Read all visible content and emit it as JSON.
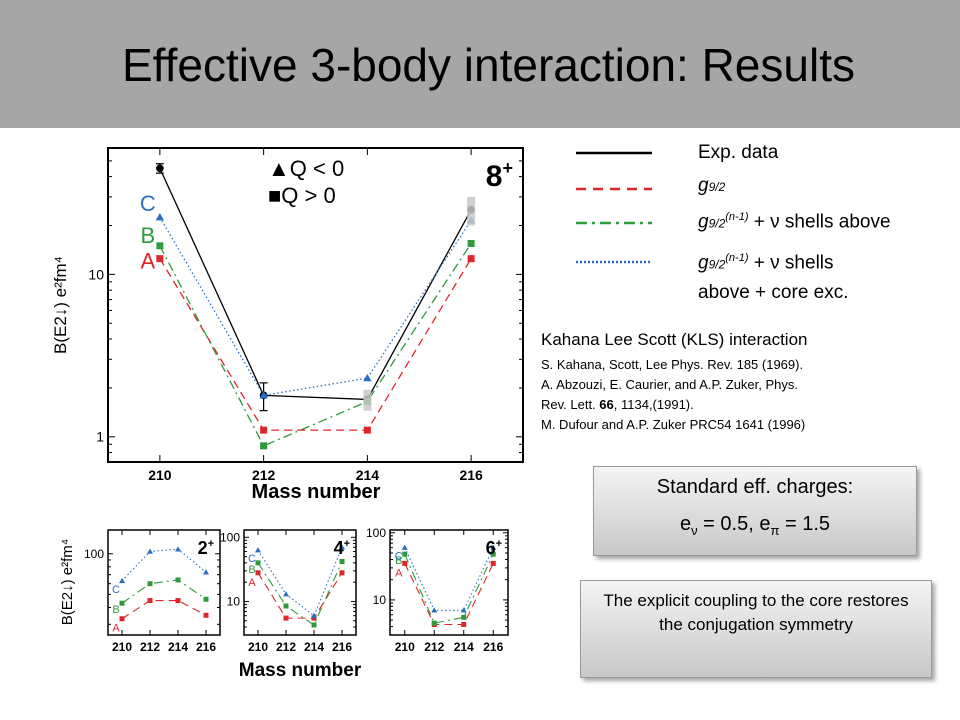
{
  "slide": {
    "title": "Effective 3-body interaction: Results"
  },
  "legend": {
    "items": [
      {
        "label": "Exp. data",
        "style": "solid",
        "color": "#000000"
      },
      {
        "label_main": "g",
        "label_sub": "9/2",
        "style": "dashed",
        "color": "#e0262a"
      },
      {
        "label_main": "g",
        "label_sub": "9/2",
        "label_sup": "(n-1)",
        "label_rest": " + ν shells above",
        "style": "dashdot",
        "color": "#2e9a3c"
      },
      {
        "label_main": "g",
        "label_sub": "9/2",
        "label_sup": "(n-1)",
        "label_rest": " + ν shells",
        "label_line2": "above + core exc.",
        "style": "dotted",
        "color": "#2a6fc4"
      }
    ]
  },
  "references": {
    "heading": "Kahana Lee Scott (KLS) interaction",
    "lines": [
      "S. Kahana, Scott, Lee Phys. Rev. 185 (1969).",
      "A. Abzouzi, E. Caurier, and A.P. Zuker, Phys.",
      "M. Dufour and A.P. Zuker PRC54 1641 (1996)"
    ],
    "line3_pre": "Rev. Lett. ",
    "line3_bold": "66",
    "line3_post": ", 1134,(1991)."
  },
  "charges_box": {
    "line1": "Standard eff. charges:",
    "e_nu_label": "e",
    "e_nu_sub": "ν",
    "e_nu_value": " = 0.5, ",
    "e_pi_label": "e",
    "e_pi_sub": "π",
    "e_pi_value": " = 1.5"
  },
  "note_box": {
    "text": "The explicit coupling to the core restores the conjugation symmetry"
  },
  "chart_data": [
    {
      "type": "line",
      "state_label": "8",
      "state_sup": "+",
      "x": [
        210,
        212,
        214,
        216
      ],
      "xlabel": "Mass number",
      "ylabel": "B(E2↓) e²fm⁴",
      "yscale": "log",
      "ylim": [
        0.7,
        60
      ],
      "yticks": [
        1,
        10
      ],
      "marker_legend": [
        "▲Q < 0",
        "■Q > 0"
      ],
      "series": [
        {
          "name": "Exp. data",
          "values": [
            45,
            1.8,
            1.7,
            25
          ],
          "color": "#000000",
          "style": "solid",
          "errors": [
            3,
            0.35,
            0,
            0
          ]
        },
        {
          "name": "A",
          "values": [
            12.5,
            1.1,
            1.1,
            12.5
          ],
          "color": "#e0262a",
          "style": "dashed"
        },
        {
          "name": "B",
          "values": [
            15,
            0.88,
            1.65,
            15.5
          ],
          "color": "#2e9a3c",
          "style": "dashdot"
        },
        {
          "name": "C",
          "values": [
            22.5,
            1.8,
            2.3,
            21.5
          ],
          "color": "#2a6fc4",
          "style": "dotted"
        }
      ]
    },
    {
      "type": "line",
      "state_label": "2",
      "state_sup": "+",
      "x": [
        210,
        212,
        214,
        216
      ],
      "xlabel": "",
      "ylabel": "B(E2↓) e²fm⁴",
      "yscale": "log",
      "ylim": [
        25,
        150
      ],
      "yticks": [
        100
      ],
      "series": [
        {
          "name": "A",
          "values": [
            33,
            45,
            45,
            35
          ],
          "color": "#e0262a",
          "style": "dashed"
        },
        {
          "name": "B",
          "values": [
            43,
            60,
            64,
            46
          ],
          "color": "#2e9a3c",
          "style": "dashdot"
        },
        {
          "name": "C",
          "values": [
            63,
            104,
            108,
            73
          ],
          "color": "#2a6fc4",
          "style": "dotted"
        }
      ]
    },
    {
      "type": "line",
      "state_label": "4",
      "state_sup": "+",
      "x": [
        210,
        212,
        214,
        216
      ],
      "xlabel": "",
      "ylabel": "",
      "yscale": "log",
      "ylim": [
        3,
        130
      ],
      "yticks": [
        10,
        100
      ],
      "series": [
        {
          "name": "A",
          "values": [
            28,
            5.5,
            5.5,
            28
          ],
          "color": "#e0262a",
          "style": "dashed"
        },
        {
          "name": "B",
          "values": [
            40,
            8.5,
            4.3,
            42
          ],
          "color": "#2e9a3c",
          "style": "dashdot"
        },
        {
          "name": "C",
          "values": [
            63,
            13,
            6,
            70
          ],
          "color": "#2a6fc4",
          "style": "dotted"
        }
      ]
    },
    {
      "type": "line",
      "state_label": "6",
      "state_sup": "+",
      "x": [
        210,
        212,
        214,
        216
      ],
      "xlabel": "",
      "ylabel": "",
      "yscale": "log",
      "ylim": [
        3,
        110
      ],
      "yticks": [
        10,
        100
      ],
      "series": [
        {
          "name": "A",
          "values": [
            35,
            4.3,
            4.3,
            35
          ],
          "color": "#e0262a",
          "style": "dashed"
        },
        {
          "name": "B",
          "values": [
            48,
            4.5,
            5.5,
            48
          ],
          "color": "#2e9a3c",
          "style": "dashdot"
        },
        {
          "name": "C",
          "values": [
            60,
            7,
            7,
            60
          ],
          "color": "#2a6fc4",
          "style": "dotted"
        }
      ]
    }
  ],
  "small_xlabel": "Mass number"
}
